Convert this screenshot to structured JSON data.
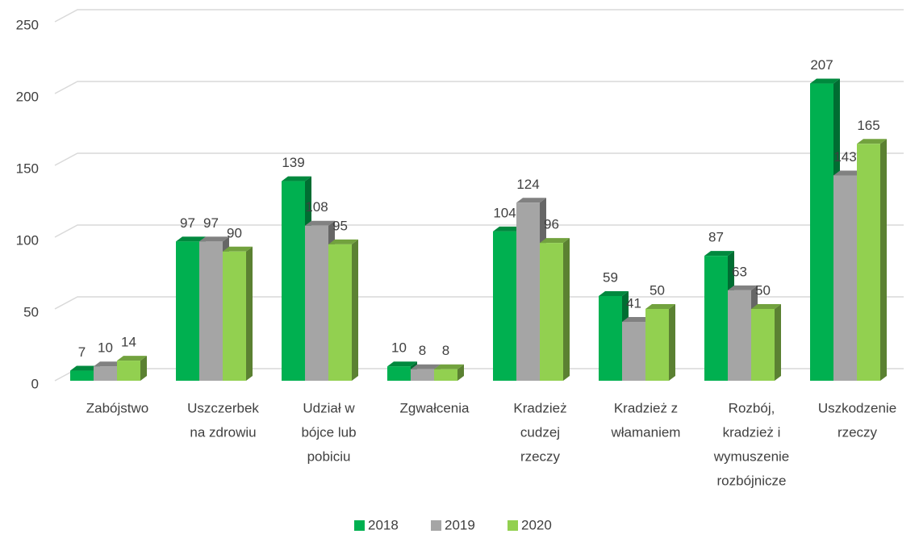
{
  "chart_data": {
    "type": "bar3d",
    "categories": [
      [
        "Zabójstwo"
      ],
      [
        "Uszczerbek",
        "na zdrowiu"
      ],
      [
        "Udział w",
        "bójce lub",
        "pobiciu"
      ],
      [
        "Zgwałcenia"
      ],
      [
        "Kradzież",
        "cudzej",
        "rzeczy"
      ],
      [
        "Kradzież z",
        "włamaniem"
      ],
      [
        "Rozbój,",
        "kradzież i",
        "wymuszenie",
        "rozbójnicze"
      ],
      [
        "Uszkodzenie",
        "rzeczy"
      ]
    ],
    "series": [
      {
        "name": "2018",
        "color": "#00b050",
        "values": [
          7,
          97,
          139,
          10,
          104,
          59,
          87,
          207
        ]
      },
      {
        "name": "2019",
        "color": "#a5a5a5",
        "values": [
          10,
          97,
          108,
          8,
          124,
          41,
          63,
          143
        ]
      },
      {
        "name": "2020",
        "color": "#92d050",
        "values": [
          14,
          90,
          95,
          8,
          96,
          50,
          50,
          165
        ]
      }
    ],
    "ylim": [
      0,
      250
    ],
    "yticks": [
      0,
      50,
      100,
      150,
      200,
      250
    ],
    "grid": true,
    "legend": "bottom"
  }
}
